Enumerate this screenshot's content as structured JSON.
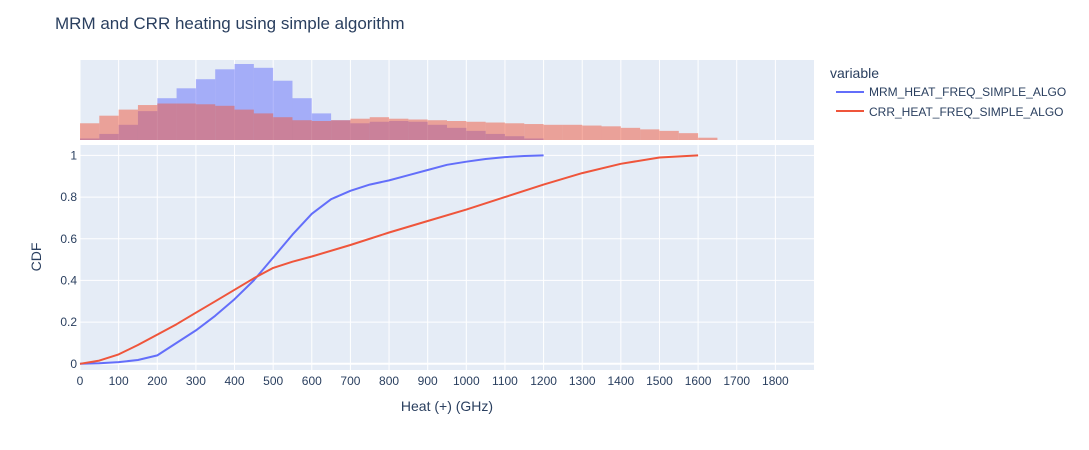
{
  "chart_data": {
    "type": "line",
    "title": "MRM and CRR heating using simple algorithm",
    "xlabel": "Heat (+) (GHz)",
    "ylabel": "CDF",
    "xlim": [
      0,
      1900
    ],
    "ylim": [
      -0.03,
      1.05
    ],
    "x_ticks": [
      "0",
      "100",
      "200",
      "300",
      "400",
      "500",
      "600",
      "700",
      "800",
      "900",
      "1000",
      "1100",
      "1200",
      "1300",
      "1400",
      "1500",
      "1600",
      "1700",
      "1800"
    ],
    "y_ticks": [
      "0",
      "0.2",
      "0.4",
      "0.6",
      "0.8",
      "1"
    ],
    "grid": true,
    "legend": {
      "title": "variable",
      "position": "right"
    },
    "series": [
      {
        "name": "MRM_HEAT_FREQ_SIMPLE_ALGO",
        "color": "#636efa",
        "cdf": {
          "x": [
            0,
            50,
            100,
            150,
            200,
            250,
            300,
            350,
            400,
            450,
            500,
            550,
            600,
            650,
            700,
            750,
            800,
            850,
            900,
            950,
            1000,
            1050,
            1100,
            1150,
            1200
          ],
          "y": [
            0,
            0.002,
            0.008,
            0.018,
            0.04,
            0.1,
            0.16,
            0.23,
            0.31,
            0.4,
            0.51,
            0.62,
            0.72,
            0.79,
            0.83,
            0.86,
            0.88,
            0.905,
            0.93,
            0.955,
            0.97,
            0.983,
            0.992,
            0.997,
            1.0
          ]
        },
        "histogram": {
          "bin_start": 0,
          "bin_width": 50,
          "counts": [
            0.02,
            0.08,
            0.2,
            0.38,
            0.55,
            0.68,
            0.8,
            0.93,
            1.0,
            0.95,
            0.78,
            0.55,
            0.35,
            0.26,
            0.22,
            0.24,
            0.25,
            0.24,
            0.2,
            0.16,
            0.12,
            0.08,
            0.05,
            0.02
          ]
        }
      },
      {
        "name": "CRR_HEAT_FREQ_SIMPLE_ALGO",
        "color": "#EF553B",
        "cdf": {
          "x": [
            0,
            50,
            100,
            150,
            200,
            250,
            300,
            350,
            400,
            450,
            500,
            550,
            600,
            700,
            800,
            900,
            1000,
            1100,
            1200,
            1300,
            1400,
            1500,
            1600
          ],
          "y": [
            0,
            0.015,
            0.045,
            0.09,
            0.14,
            0.19,
            0.245,
            0.3,
            0.355,
            0.41,
            0.46,
            0.49,
            0.515,
            0.57,
            0.63,
            0.685,
            0.74,
            0.8,
            0.86,
            0.915,
            0.96,
            0.99,
            1.0
          ]
        },
        "histogram": {
          "bin_start": 0,
          "bin_width": 50,
          "counts": [
            0.22,
            0.32,
            0.4,
            0.46,
            0.48,
            0.48,
            0.47,
            0.45,
            0.4,
            0.35,
            0.3,
            0.26,
            0.25,
            0.26,
            0.28,
            0.3,
            0.28,
            0.27,
            0.26,
            0.25,
            0.24,
            0.23,
            0.22,
            0.21,
            0.2,
            0.2,
            0.19,
            0.18,
            0.16,
            0.14,
            0.12,
            0.09,
            0.03
          ]
        }
      }
    ]
  }
}
